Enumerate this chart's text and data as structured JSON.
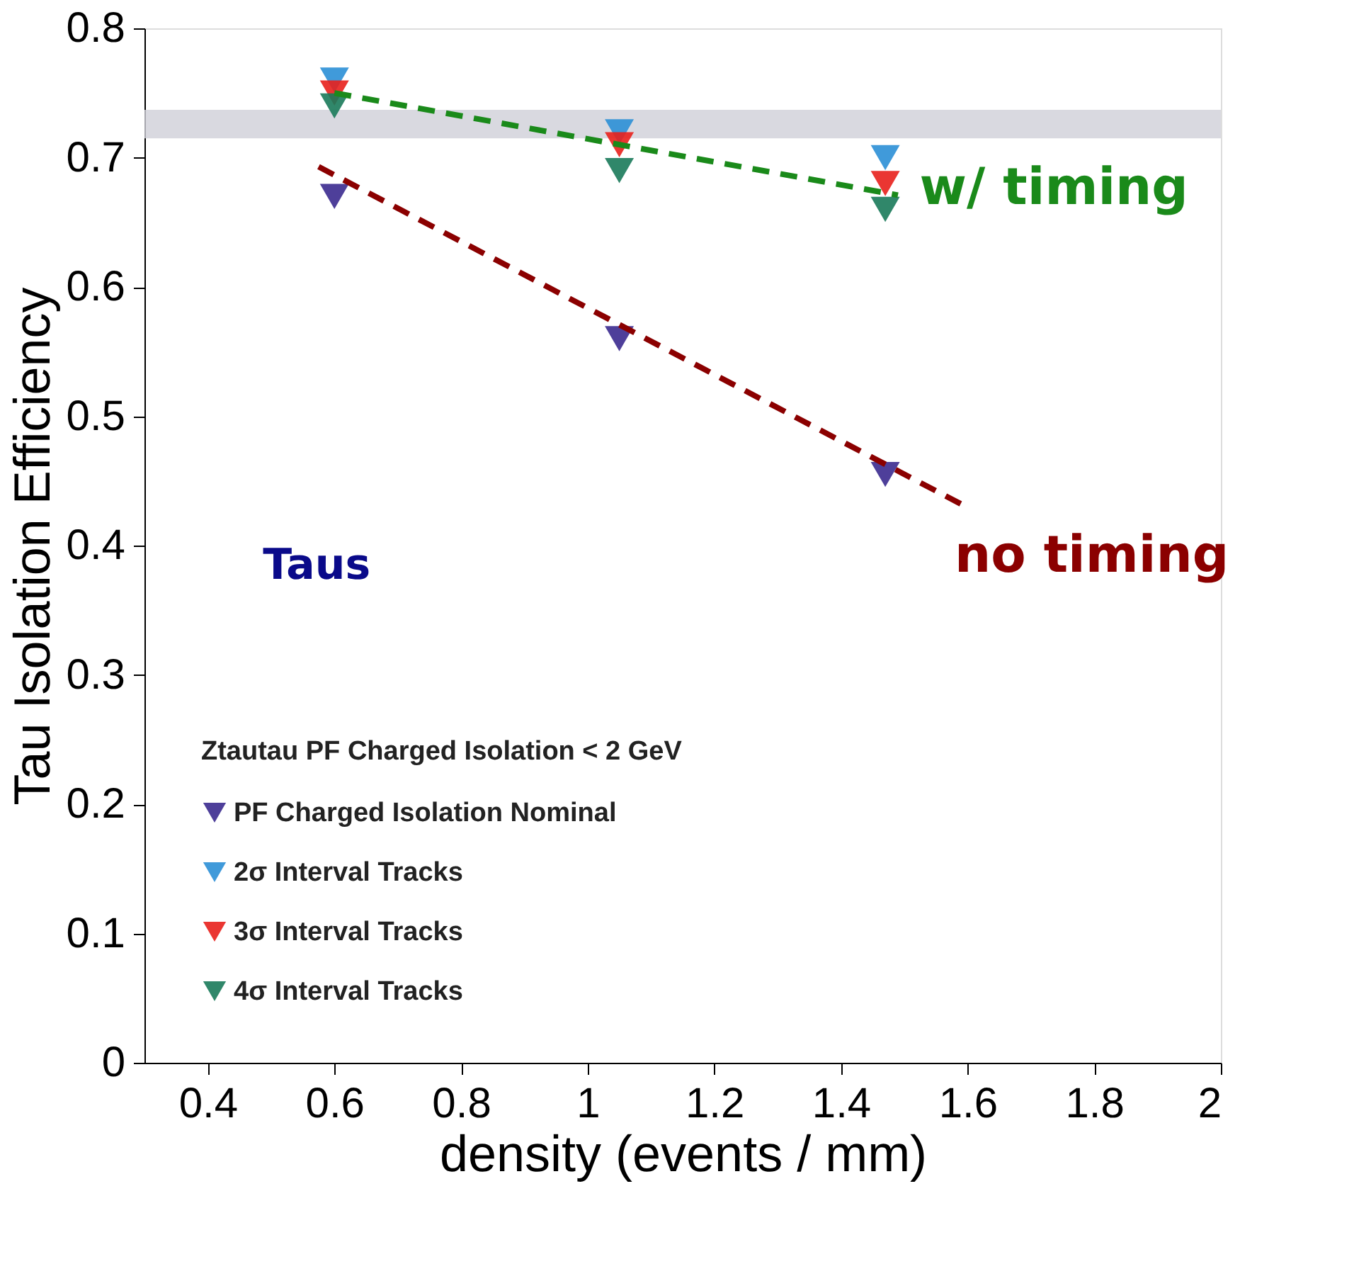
{
  "chart_data": {
    "type": "scatter",
    "xlabel": "density (events / mm)",
    "ylabel": "Tau Isolation Efficiency",
    "legend_title": "Ztautau PF Charged Isolation < 2 GeV",
    "xlim": [
      0.3,
      2
    ],
    "ylim": [
      0,
      0.8
    ],
    "xticks": [
      0.4,
      0.6,
      0.8,
      1,
      1.2,
      1.4,
      1.6,
      1.8,
      2
    ],
    "yticks": [
      0,
      0.1,
      0.2,
      0.3,
      0.4,
      0.5,
      0.6,
      0.7,
      0.8
    ],
    "marker": "triangle",
    "legend": "bottom left",
    "grid": false,
    "bands": [
      {
        "axis": "y",
        "from": 0.715,
        "to": 0.737,
        "color": "#d0d0d8"
      }
    ],
    "annotations": [
      "Taus",
      "w/ timing",
      "no timing"
    ],
    "series": [
      {
        "name": "PF Charged Isolation Nominal",
        "color": "#3b2a8f",
        "x": [
          0.6,
          1.05,
          1.47
        ],
        "values": [
          0.67,
          0.56,
          0.455
        ]
      },
      {
        "name": "2σ Interval Tracks",
        "color": "#2b8fd6",
        "x": [
          0.6,
          1.05,
          1.47
        ],
        "values": [
          0.76,
          0.72,
          0.7
        ]
      },
      {
        "name": "3σ Interval Tracks",
        "color": "#e8201c",
        "x": [
          0.6,
          1.05,
          1.47
        ],
        "values": [
          0.75,
          0.71,
          0.68
        ]
      },
      {
        "name": "4σ Interval Tracks",
        "color": "#1a7a5a",
        "x": [
          0.6,
          1.05,
          1.47
        ],
        "values": [
          0.74,
          0.69,
          0.66
        ]
      },
      {
        "type": "line",
        "color": "#1a8a1a",
        "line_style": "dashed",
        "marker": "none",
        "x": [
          0.6,
          1.49
        ],
        "values": [
          0.75,
          0.671
        ]
      },
      {
        "type": "line",
        "color": "#8b0000",
        "line_style": "dashed",
        "marker": "none",
        "x": [
          0.575,
          1.59
        ],
        "values": [
          0.693,
          0.432
        ]
      }
    ]
  }
}
